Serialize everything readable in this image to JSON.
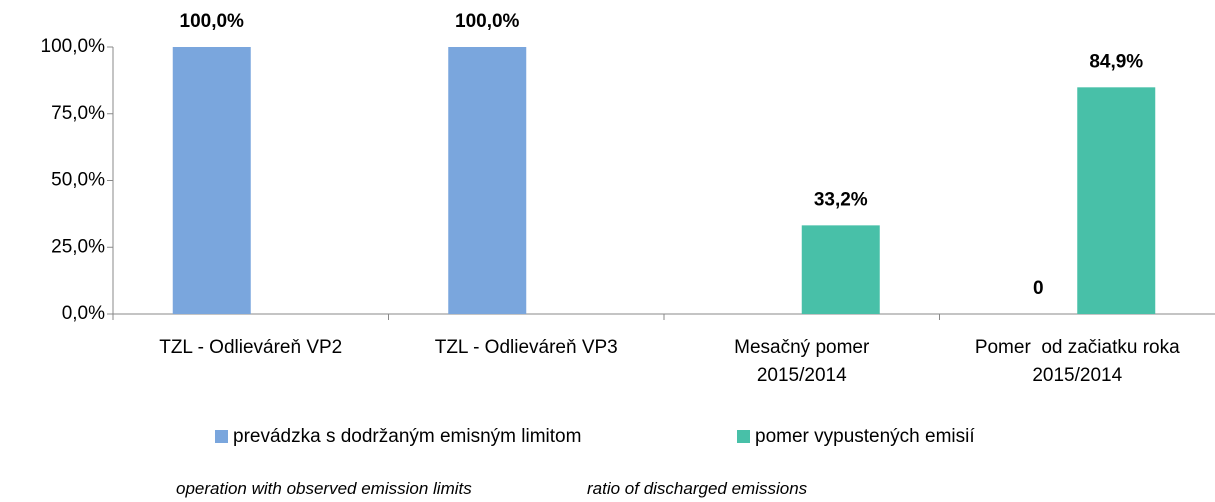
{
  "chart_data": {
    "type": "bar",
    "categories": [
      "TZL - Odlieváreň VP2",
      "TZL - Odlieváreň VP3",
      "Mesačný pomer\n2015/2014",
      "Pomer  od začiatku roka\n2015/2014"
    ],
    "series": [
      {
        "name": "prevádzka s dodržaným emisným limitom",
        "color": "#7aa6dd",
        "values": [
          100,
          100,
          null,
          0
        ],
        "value_labels": [
          "100,0%",
          "100,0%",
          null,
          "0"
        ]
      },
      {
        "name": "pomer vypustených emisií",
        "color": "#48c0a8",
        "values": [
          null,
          null,
          33.2,
          84.9
        ],
        "value_labels": [
          null,
          null,
          "33,2%",
          "84,9%"
        ]
      }
    ],
    "ylim": [
      0,
      100
    ],
    "yticks": [
      {
        "value": 0,
        "label": "0,0%"
      },
      {
        "value": 25,
        "label": "25,0%"
      },
      {
        "value": 50,
        "label": "50,0%"
      },
      {
        "value": 75,
        "label": "75,0%"
      },
      {
        "value": 100,
        "label": "100,0%"
      }
    ],
    "annotations": [
      "operation with observed emission limits",
      "ratio of discharged emissions"
    ]
  }
}
